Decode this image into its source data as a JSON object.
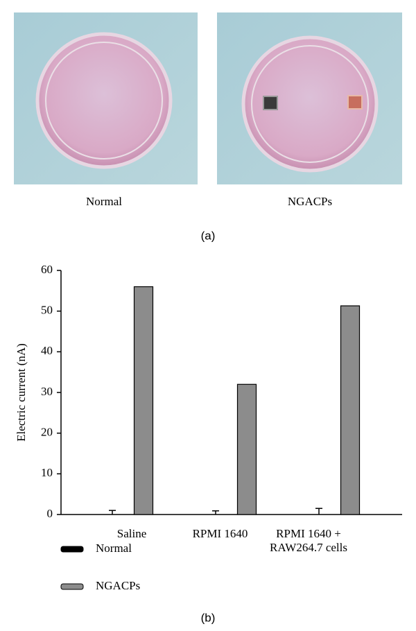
{
  "panel_a": {
    "labels": [
      "Normal",
      "NGACPs"
    ],
    "caption": "(a)"
  },
  "chart_data": {
    "type": "bar",
    "y_label": "Electric current (nA)",
    "caption": "(b)",
    "categories": [
      "Saline",
      "RPMI 1640",
      "RPMI 1640 + RAW264.7 cells"
    ],
    "series": [
      {
        "name": "Normal",
        "color": "#000000",
        "values": [
          0,
          0,
          0
        ],
        "errors": [
          1.0,
          0.9,
          1.5
        ]
      },
      {
        "name": "NGACPs",
        "color": "#8c8c8c",
        "values": [
          56,
          32,
          51.3
        ]
      }
    ],
    "ylim": [
      0,
      60
    ],
    "yticks": [
      0,
      10,
      20,
      30,
      40,
      50,
      60
    ]
  }
}
